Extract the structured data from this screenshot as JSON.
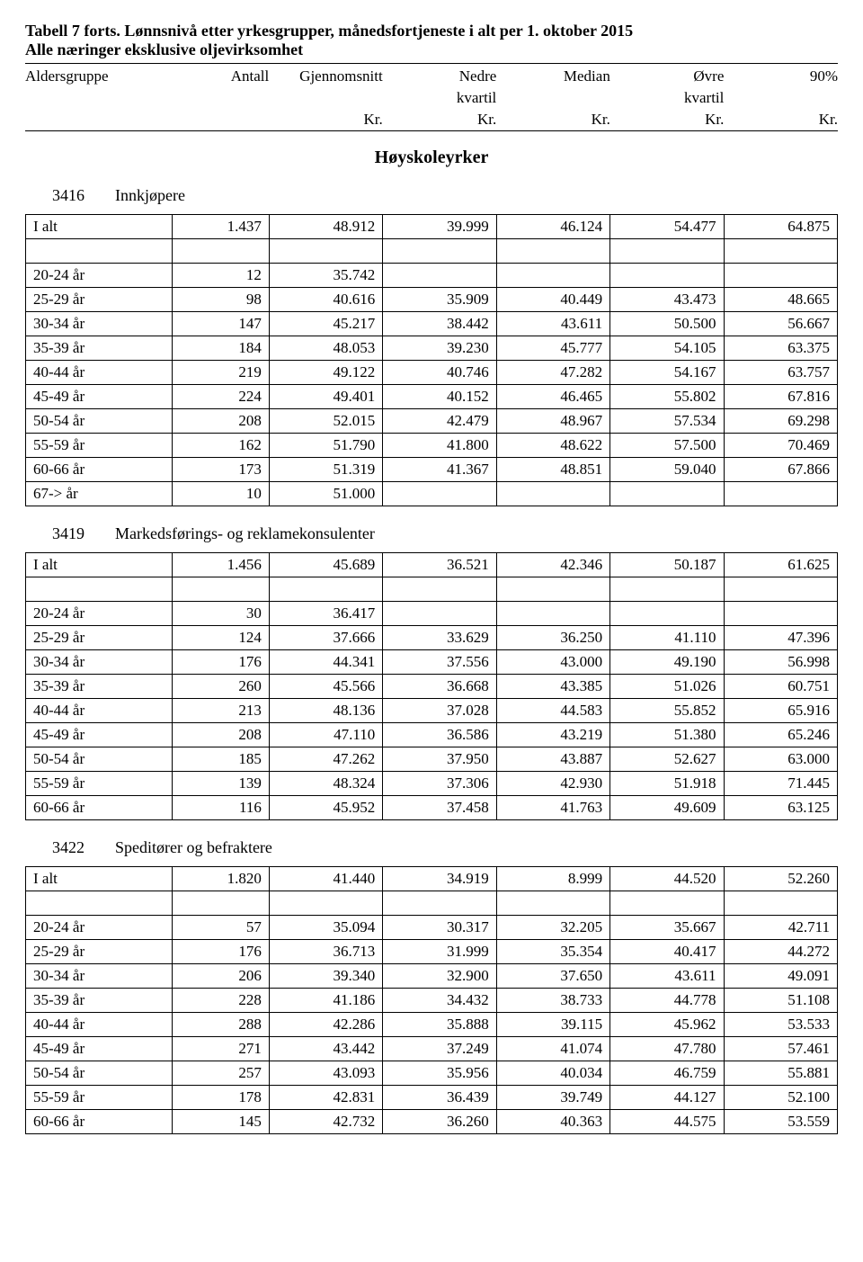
{
  "title_line1": "Tabell 7 forts. Lønnsnivå etter yrkesgrupper, månedsfortjeneste i alt per 1. oktober 2015",
  "title_line2": "Alle næringer eksklusive oljevirksomhet",
  "header": {
    "c0": "Aldersgruppe",
    "c1": "Antall",
    "c2": "Gjennomsnitt",
    "c3_top": "Nedre",
    "c3_bot": "kvartil",
    "c4": "Median",
    "c5_top": "Øvre",
    "c5_bot": "kvartil",
    "c6": "90%",
    "unit": "Kr."
  },
  "section_heading": "Høyskoleyrker",
  "groups": [
    {
      "code": "3416",
      "name": "Innkjøpere",
      "total": {
        "label": "I alt",
        "n": "1.437",
        "v": [
          "48.912",
          "39.999",
          "46.124",
          "54.477",
          "64.875"
        ]
      },
      "rows": [
        {
          "label": "20-24 år",
          "n": "12",
          "v": [
            "35.742",
            "",
            "",
            "",
            ""
          ]
        },
        {
          "label": "25-29 år",
          "n": "98",
          "v": [
            "40.616",
            "35.909",
            "40.449",
            "43.473",
            "48.665"
          ]
        },
        {
          "label": "30-34 år",
          "n": "147",
          "v": [
            "45.217",
            "38.442",
            "43.611",
            "50.500",
            "56.667"
          ]
        },
        {
          "label": "35-39 år",
          "n": "184",
          "v": [
            "48.053",
            "39.230",
            "45.777",
            "54.105",
            "63.375"
          ]
        },
        {
          "label": "40-44 år",
          "n": "219",
          "v": [
            "49.122",
            "40.746",
            "47.282",
            "54.167",
            "63.757"
          ]
        },
        {
          "label": "45-49 år",
          "n": "224",
          "v": [
            "49.401",
            "40.152",
            "46.465",
            "55.802",
            "67.816"
          ]
        },
        {
          "label": "50-54 år",
          "n": "208",
          "v": [
            "52.015",
            "42.479",
            "48.967",
            "57.534",
            "69.298"
          ]
        },
        {
          "label": "55-59 år",
          "n": "162",
          "v": [
            "51.790",
            "41.800",
            "48.622",
            "57.500",
            "70.469"
          ]
        },
        {
          "label": "60-66 år",
          "n": "173",
          "v": [
            "51.319",
            "41.367",
            "48.851",
            "59.040",
            "67.866"
          ]
        },
        {
          "label": "67-> år",
          "n": "10",
          "v": [
            "51.000",
            "",
            "",
            "",
            ""
          ]
        }
      ]
    },
    {
      "code": "3419",
      "name": "Markedsførings- og reklamekonsulenter",
      "total": {
        "label": "I alt",
        "n": "1.456",
        "v": [
          "45.689",
          "36.521",
          "42.346",
          "50.187",
          "61.625"
        ]
      },
      "rows": [
        {
          "label": "20-24 år",
          "n": "30",
          "v": [
            "36.417",
            "",
            "",
            "",
            ""
          ]
        },
        {
          "label": "25-29 år",
          "n": "124",
          "v": [
            "37.666",
            "33.629",
            "36.250",
            "41.110",
            "47.396"
          ]
        },
        {
          "label": "30-34 år",
          "n": "176",
          "v": [
            "44.341",
            "37.556",
            "43.000",
            "49.190",
            "56.998"
          ]
        },
        {
          "label": "35-39 år",
          "n": "260",
          "v": [
            "45.566",
            "36.668",
            "43.385",
            "51.026",
            "60.751"
          ]
        },
        {
          "label": "40-44 år",
          "n": "213",
          "v": [
            "48.136",
            "37.028",
            "44.583",
            "55.852",
            "65.916"
          ]
        },
        {
          "label": "45-49 år",
          "n": "208",
          "v": [
            "47.110",
            "36.586",
            "43.219",
            "51.380",
            "65.246"
          ]
        },
        {
          "label": "50-54 år",
          "n": "185",
          "v": [
            "47.262",
            "37.950",
            "43.887",
            "52.627",
            "63.000"
          ]
        },
        {
          "label": "55-59 år",
          "n": "139",
          "v": [
            "48.324",
            "37.306",
            "42.930",
            "51.918",
            "71.445"
          ]
        },
        {
          "label": "60-66 år",
          "n": "116",
          "v": [
            "45.952",
            "37.458",
            "41.763",
            "49.609",
            "63.125"
          ]
        }
      ]
    },
    {
      "code": "3422",
      "name": "Speditører og befraktere",
      "total": {
        "label": "I alt",
        "n": "1.820",
        "v": [
          "41.440",
          "34.919",
          "8.999",
          "44.520",
          "52.260"
        ]
      },
      "rows": [
        {
          "label": "20-24 år",
          "n": "57",
          "v": [
            "35.094",
            "30.317",
            "32.205",
            "35.667",
            "42.711"
          ]
        },
        {
          "label": "25-29 år",
          "n": "176",
          "v": [
            "36.713",
            "31.999",
            "35.354",
            "40.417",
            "44.272"
          ]
        },
        {
          "label": "30-34 år",
          "n": "206",
          "v": [
            "39.340",
            "32.900",
            "37.650",
            "43.611",
            "49.091"
          ]
        },
        {
          "label": "35-39 år",
          "n": "228",
          "v": [
            "41.186",
            "34.432",
            "38.733",
            "44.778",
            "51.108"
          ]
        },
        {
          "label": "40-44 år",
          "n": "288",
          "v": [
            "42.286",
            "35.888",
            "39.115",
            "45.962",
            "53.533"
          ]
        },
        {
          "label": "45-49 år",
          "n": "271",
          "v": [
            "43.442",
            "37.249",
            "41.074",
            "47.780",
            "57.461"
          ]
        },
        {
          "label": "50-54 år",
          "n": "257",
          "v": [
            "43.093",
            "35.956",
            "40.034",
            "46.759",
            "55.881"
          ]
        },
        {
          "label": "55-59 år",
          "n": "178",
          "v": [
            "42.831",
            "36.439",
            "39.749",
            "44.127",
            "52.100"
          ]
        },
        {
          "label": "60-66 år",
          "n": "145",
          "v": [
            "42.732",
            "36.260",
            "40.363",
            "44.575",
            "53.559"
          ]
        }
      ]
    }
  ]
}
